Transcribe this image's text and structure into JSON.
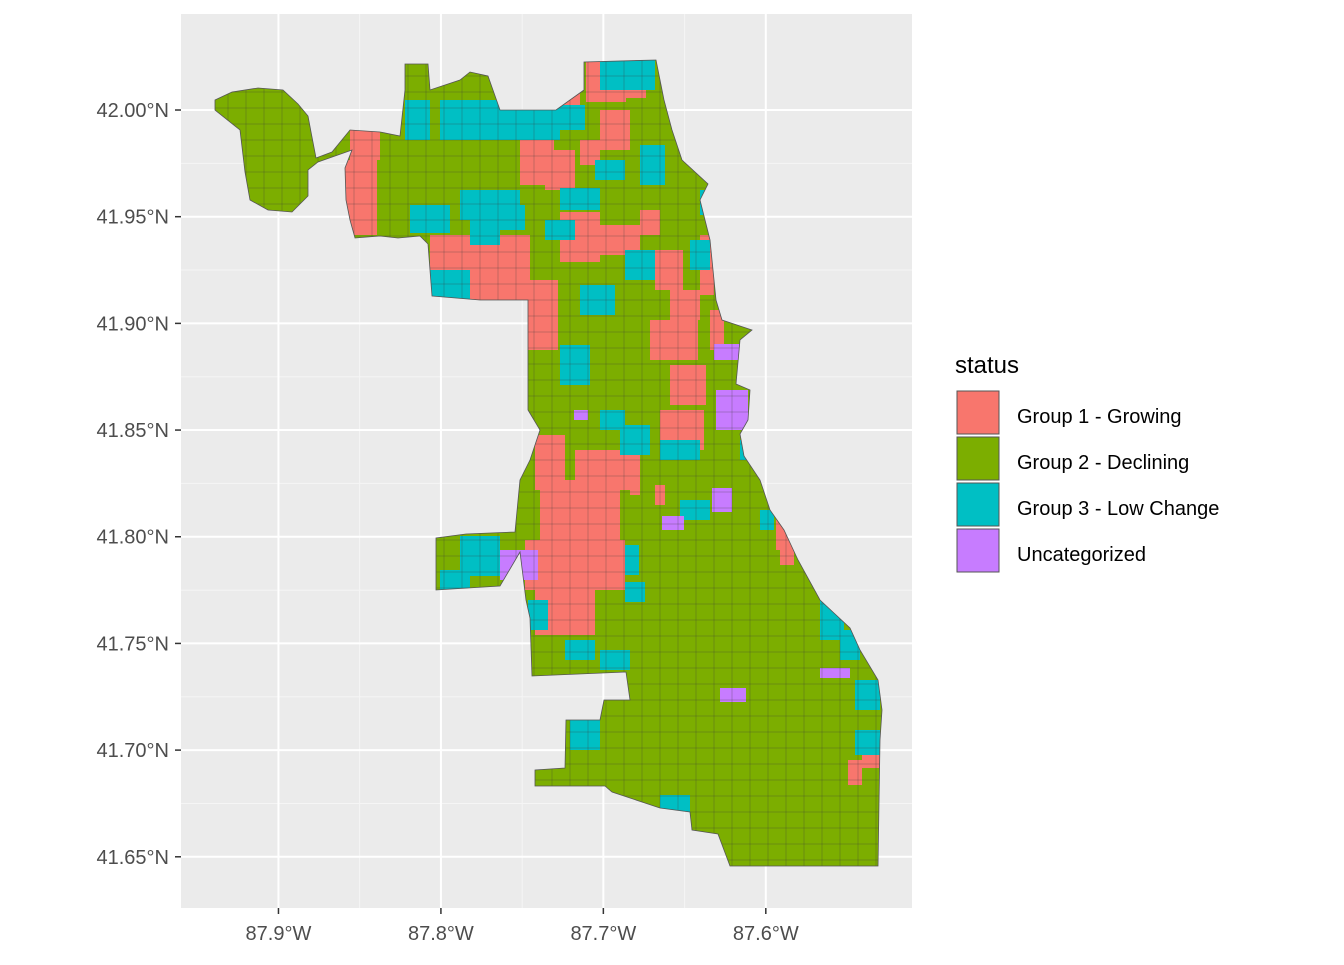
{
  "map": {
    "type": "choropleth",
    "x_axis": {
      "ticks": [
        {
          "value": -87.9,
          "label": "87.9°W"
        },
        {
          "value": -87.8,
          "label": "87.8°W"
        },
        {
          "value": -87.7,
          "label": "87.7°W"
        },
        {
          "value": -87.6,
          "label": "87.6°W"
        }
      ],
      "range": [
        -87.96,
        -87.51
      ]
    },
    "y_axis": {
      "ticks": [
        {
          "value": 42.0,
          "label": "42.00°N"
        },
        {
          "value": 41.95,
          "label": "41.95°N"
        },
        {
          "value": 41.9,
          "label": "41.90°N"
        },
        {
          "value": 41.85,
          "label": "41.85°N"
        },
        {
          "value": 41.8,
          "label": "41.80°N"
        },
        {
          "value": 41.75,
          "label": "41.75°N"
        },
        {
          "value": 41.7,
          "label": "41.70°N"
        },
        {
          "value": 41.65,
          "label": "41.65°N"
        }
      ],
      "range": [
        41.626,
        42.045
      ]
    },
    "grid": true,
    "panel_background": "#EBEBEB"
  },
  "legend": {
    "title": "status",
    "position": "right",
    "items": [
      {
        "label": "Group 1 - Growing",
        "color": "#F8766D"
      },
      {
        "label": "Group 2 - Declining",
        "color": "#7CAE00"
      },
      {
        "label": "Group 3 - Low Change",
        "color": "#00BFC4"
      },
      {
        "label": "Uncategorized",
        "color": "#C77CFF"
      }
    ]
  }
}
